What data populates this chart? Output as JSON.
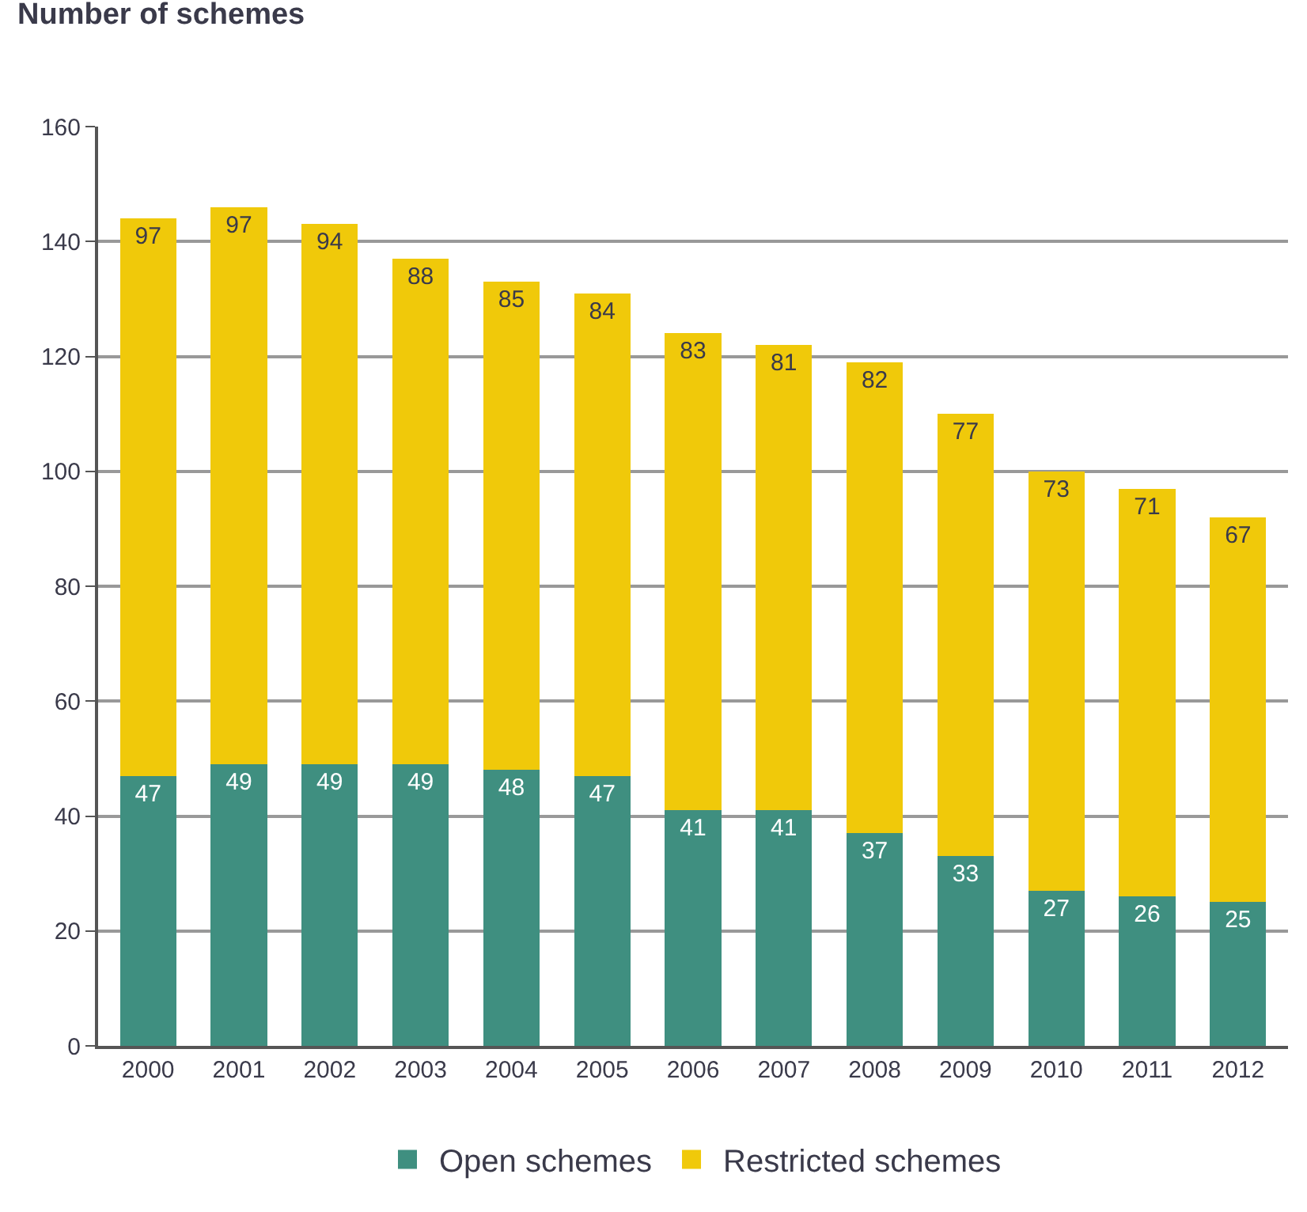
{
  "chart_data": {
    "type": "bar",
    "stacked": true,
    "ylabel": "Number of schemes",
    "categories": [
      "2000",
      "2001",
      "2002",
      "2003",
      "2004",
      "2005",
      "2006",
      "2007",
      "2008",
      "2009",
      "2010",
      "2011",
      "2012"
    ],
    "series": [
      {
        "name": "Open schemes",
        "color": "#3f8f80",
        "values": [
          47,
          49,
          49,
          49,
          48,
          47,
          41,
          41,
          37,
          33,
          27,
          26,
          25
        ]
      },
      {
        "name": "Restricted schemes",
        "color": "#f0c90a",
        "values": [
          97,
          97,
          94,
          88,
          85,
          84,
          83,
          81,
          82,
          77,
          73,
          71,
          67
        ]
      }
    ],
    "ylim": [
      0,
      160
    ],
    "yticks": [
      0,
      20,
      40,
      60,
      80,
      100,
      120,
      140,
      160
    ],
    "grid": "y",
    "legend": "bottom",
    "data_labels": true
  }
}
